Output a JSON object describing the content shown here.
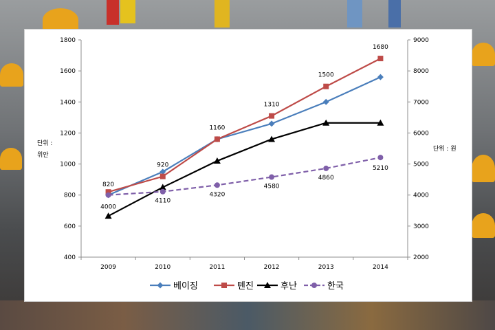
{
  "chart_data": {
    "type": "line",
    "categories": [
      "2009",
      "2010",
      "2011",
      "2012",
      "2013",
      "2014"
    ],
    "left_axis": {
      "label_line1": "단위 :",
      "label_line2": "위안",
      "min": 400,
      "max": 1800,
      "step": 200,
      "ticks": [
        "400",
        "600",
        "800",
        "1000",
        "1200",
        "1400",
        "1600",
        "1800"
      ]
    },
    "right_axis": {
      "label": "단위 : 원",
      "min": 2000,
      "max": 9000,
      "step": 1000,
      "ticks": [
        "2000",
        "3000",
        "4000",
        "5000",
        "6000",
        "7000",
        "8000",
        "9000"
      ]
    },
    "series": [
      {
        "name": "베이징",
        "axis": "left",
        "color": "#4a7ebb",
        "marker": "diamond",
        "dash": false,
        "values": [
          800,
          950,
          1160,
          1260,
          1400,
          1560
        ],
        "labels": []
      },
      {
        "name": "톈진",
        "axis": "left",
        "color": "#be4b48",
        "marker": "square",
        "dash": false,
        "values": [
          820,
          920,
          1160,
          1310,
          1500,
          1680
        ],
        "labels": [
          "820",
          "920",
          "1160",
          "1310",
          "1500",
          "1680"
        ]
      },
      {
        "name": "후난",
        "axis": "left",
        "color": "#000000",
        "marker": "triangle",
        "dash": false,
        "values": [
          665,
          850,
          1020,
          1160,
          1265,
          1265
        ],
        "labels": []
      },
      {
        "name": "한국",
        "axis": "right",
        "color": "#7f5fa9",
        "marker": "circle",
        "dash": true,
        "values": [
          4000,
          4110,
          4320,
          4580,
          4860,
          5210
        ],
        "labels": [
          "4000",
          "4110",
          "4320",
          "4580",
          "4860",
          "5210"
        ]
      }
    ],
    "legend_position": "bottom",
    "grid": false
  }
}
